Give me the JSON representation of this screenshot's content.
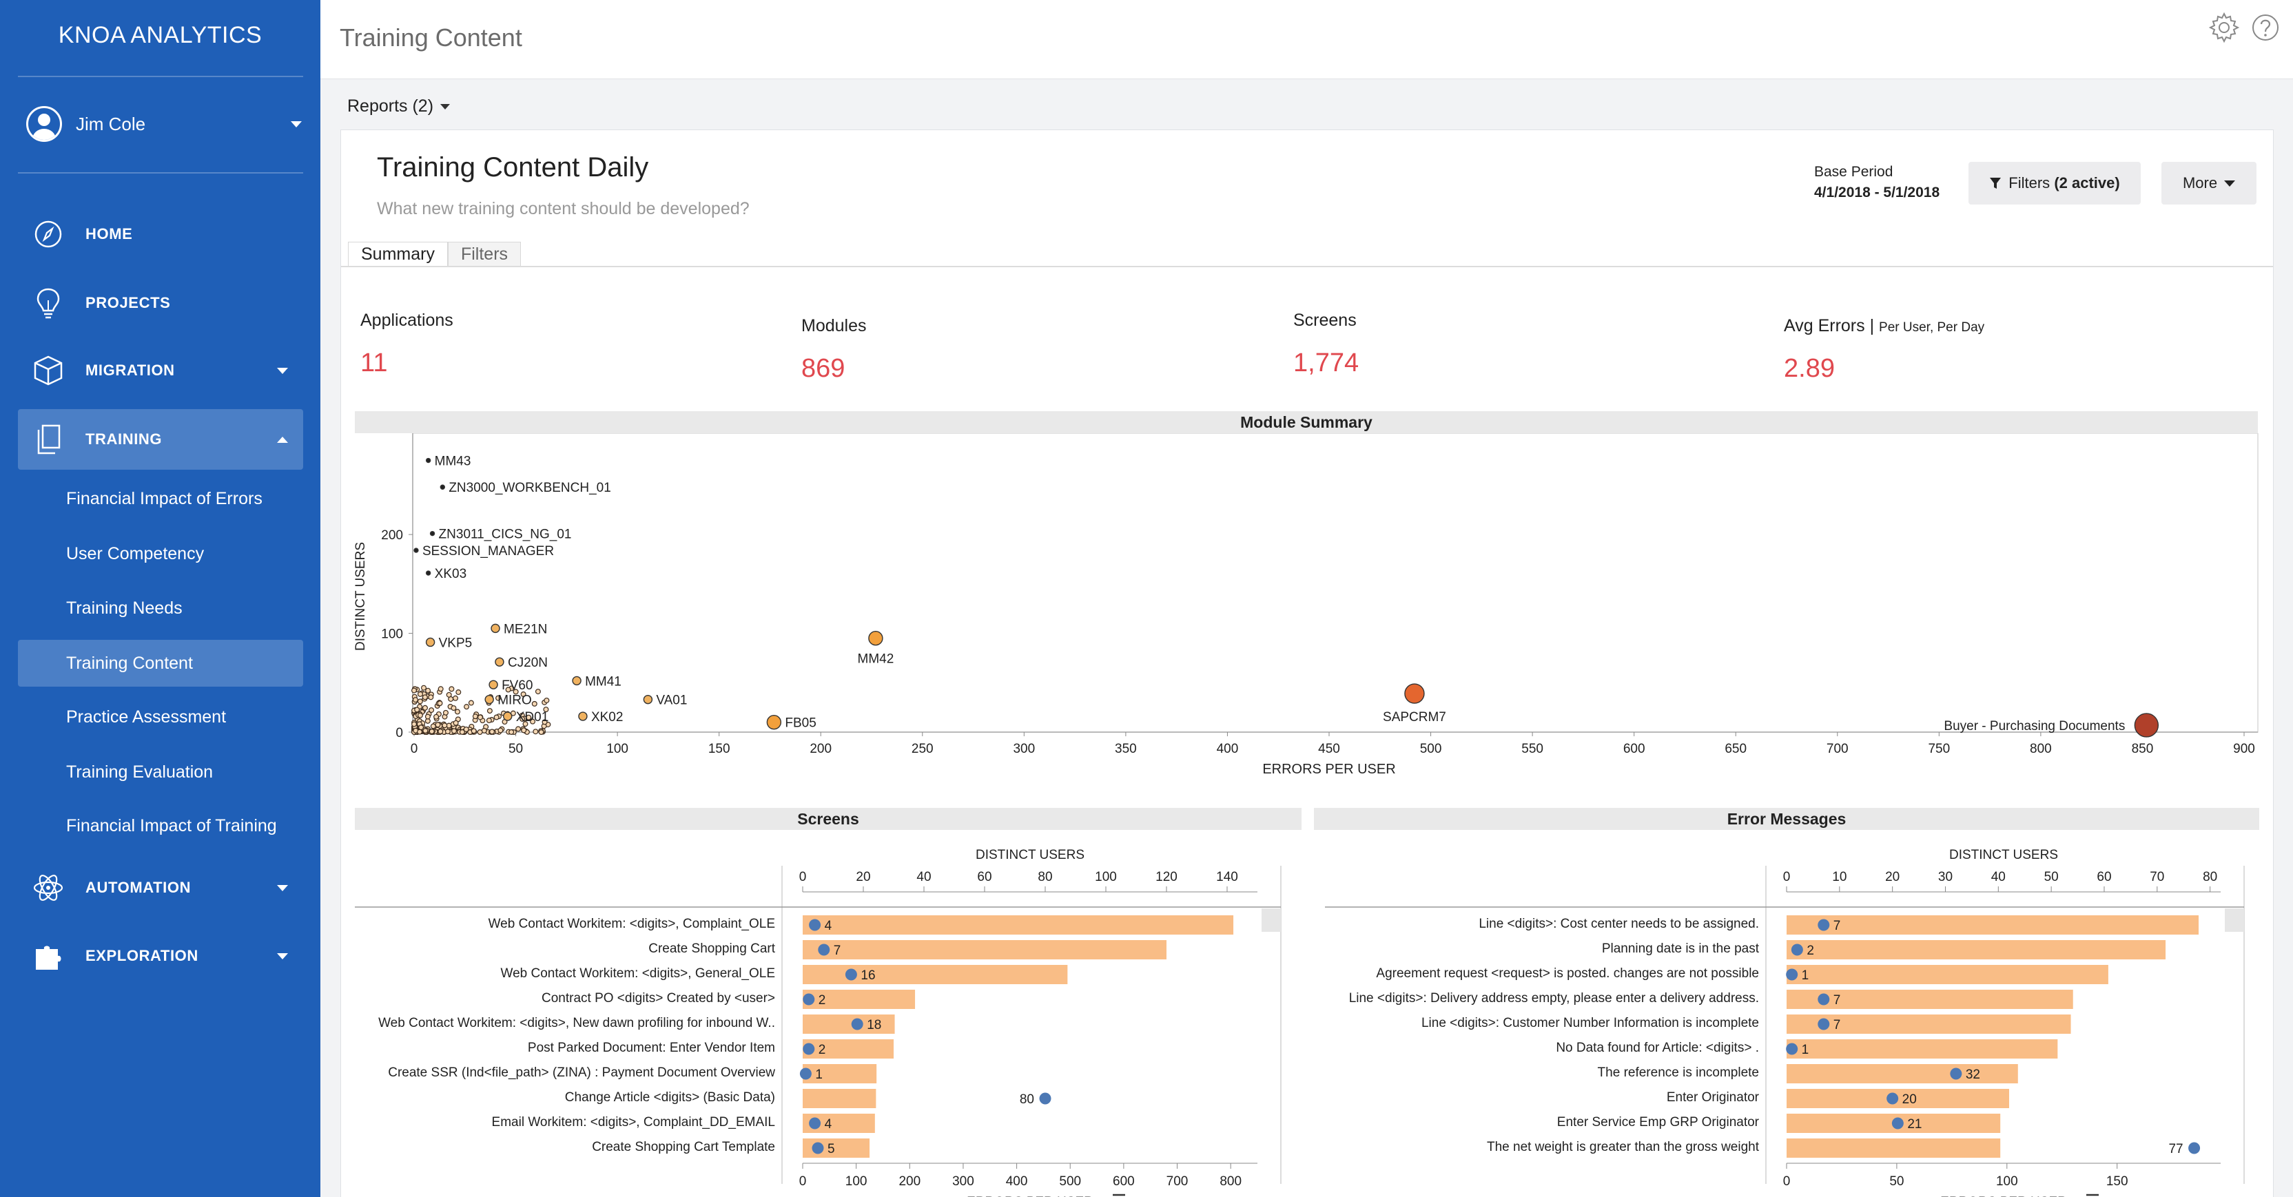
{
  "app": {
    "brand": "KNOA ANALYTICS",
    "user_name": "Jim Cole"
  },
  "nav": {
    "home": "HOME",
    "projects": "PROJECTS",
    "migration": "MIGRATION",
    "training": "TRAINING",
    "training_items": [
      "Financial Impact of Errors",
      "User Competency",
      "Training Needs",
      "Training Content",
      "Practice Assessment",
      "Training Evaluation",
      "Financial Impact of Training"
    ],
    "automation": "AUTOMATION",
    "exploration": "EXPLORATION"
  },
  "header": {
    "title": "Training Content",
    "reports": "Reports (2)"
  },
  "report": {
    "title": "Training Content Daily",
    "subtitle": "What new training content should be developed?",
    "base_period_label": "Base Period",
    "base_period_range": "4/1/2018 - 5/1/2018",
    "filters_button": "Filters",
    "filters_active": "(2 active)",
    "more_button": "More",
    "tabs": [
      "Summary",
      "Filters"
    ]
  },
  "kpis": {
    "applications": {
      "label": "Applications",
      "value": "11"
    },
    "modules": {
      "label": "Modules",
      "value": "869"
    },
    "screens": {
      "label": "Screens",
      "value": "1,774"
    },
    "avg_errors": {
      "label": "Avg Errors |",
      "sublabel": "Per User, Per Day",
      "value": "2.89"
    }
  },
  "colors": {
    "sidebar": "#1f5fb7",
    "accent_red": "#e0484e",
    "bar": "#f9bd86",
    "dot": "#4c78b4"
  },
  "chart_data": [
    {
      "type": "scatter",
      "title": "Module Summary",
      "xlabel": "ERRORS PER USER",
      "ylabel": "DISTINCT USERS",
      "xlim": [
        0,
        900
      ],
      "ylim": [
        0,
        290
      ],
      "xticks": [
        0,
        50,
        100,
        150,
        200,
        250,
        300,
        350,
        400,
        450,
        500,
        550,
        600,
        650,
        700,
        750,
        800,
        850,
        900
      ],
      "yticks": [
        0,
        100,
        200
      ],
      "labeled_points": [
        {
          "label": "MM43",
          "x": 7,
          "y": 275
        },
        {
          "label": "ZN3000_WORKBENCH_01",
          "x": 14,
          "y": 248
        },
        {
          "label": "ZN3011_CICS_NG_01",
          "x": 9,
          "y": 201
        },
        {
          "label": "SESSION_MANAGER",
          "x": 1,
          "y": 184
        },
        {
          "label": "XK03",
          "x": 7,
          "y": 161
        },
        {
          "label": "ME21N",
          "x": 40,
          "y": 105
        },
        {
          "label": "VKP5",
          "x": 8,
          "y": 91
        },
        {
          "label": "CJ20N",
          "x": 42,
          "y": 71
        },
        {
          "label": "FV60",
          "x": 39,
          "y": 48
        },
        {
          "label": "MIRO",
          "x": 37,
          "y": 33
        },
        {
          "label": "MM41",
          "x": 80,
          "y": 52
        },
        {
          "label": "XD01",
          "x": 46,
          "y": 16
        },
        {
          "label": "XK02",
          "x": 83,
          "y": 16
        },
        {
          "label": "VA01",
          "x": 115,
          "y": 33
        },
        {
          "label": "FB05",
          "x": 177,
          "y": 10
        },
        {
          "label": "MM42",
          "x": 227,
          "y": 95
        },
        {
          "label": "SAPCRM7",
          "x": 492,
          "y": 39
        },
        {
          "label": "Buyer - Purchasing Documents",
          "x": 852,
          "y": 7
        }
      ]
    },
    {
      "type": "bar",
      "title": "Screens",
      "xlabel": "ERRORS PER USER",
      "x2label": "DISTINCT USERS",
      "xlim": [
        0,
        850
      ],
      "x2lim": [
        0,
        150
      ],
      "xticks": [
        0,
        100,
        200,
        300,
        400,
        500,
        600,
        700,
        800
      ],
      "x2ticks": [
        0,
        20,
        40,
        60,
        80,
        100,
        120,
        140
      ],
      "categories": [
        "Web Contact Workitem: <digits>, Complaint_OLE",
        "Create Shopping Cart",
        "Web Contact Workitem: <digits>, General_OLE",
        "Contract PO <digits> Created by <user>",
        "Web Contact Workitem: <digits>, New dawn profiling for inbound W..",
        "Post Parked Document: Enter Vendor Item",
        "Create SSR (Ind<file_path> (ZINA) : Payment Document Overview",
        "Change Article <digits> (Basic Data)",
        "Email Workitem: <digits>, Complaint_DD_EMAIL",
        "Create Shopping Cart Template"
      ],
      "series": [
        {
          "name": "ERRORS PER USER",
          "values": [
            805,
            680,
            495,
            210,
            172,
            170,
            138,
            137,
            135,
            125
          ]
        },
        {
          "name": "DISTINCT USERS",
          "values": [
            4,
            7,
            16,
            2,
            18,
            2,
            1,
            80,
            4,
            5
          ]
        }
      ]
    },
    {
      "type": "bar",
      "title": "Error Messages",
      "xlabel": "ERRORS PER USER",
      "x2label": "DISTINCT USERS",
      "xlim": [
        0,
        197
      ],
      "x2lim": [
        0,
        82
      ],
      "xticks": [
        0,
        50,
        100,
        150
      ],
      "x2ticks": [
        0,
        10,
        20,
        30,
        40,
        50,
        60,
        70,
        80
      ],
      "categories": [
        "Line <digits>: Cost center needs to be assigned.",
        "Planning date is in the past",
        "Agreement request <request> is posted. changes are not possible",
        "Line <digits>: Delivery address empty, please enter a delivery address.",
        "Line <digits>: Customer Number Information is incomplete",
        "No Data found for Article: <digits>  .",
        "The reference is incomplete",
        "Enter Originator",
        "Enter Service Emp GRP Originator",
        "The net weight is greater than the gross weight"
      ],
      "series": [
        {
          "name": "ERRORS PER USER",
          "values": [
            187,
            172,
            146,
            130,
            129,
            123,
            105,
            101,
            97,
            97
          ]
        },
        {
          "name": "DISTINCT USERS",
          "values": [
            7,
            2,
            1,
            7,
            7,
            1,
            32,
            20,
            21,
            77
          ]
        }
      ]
    }
  ]
}
